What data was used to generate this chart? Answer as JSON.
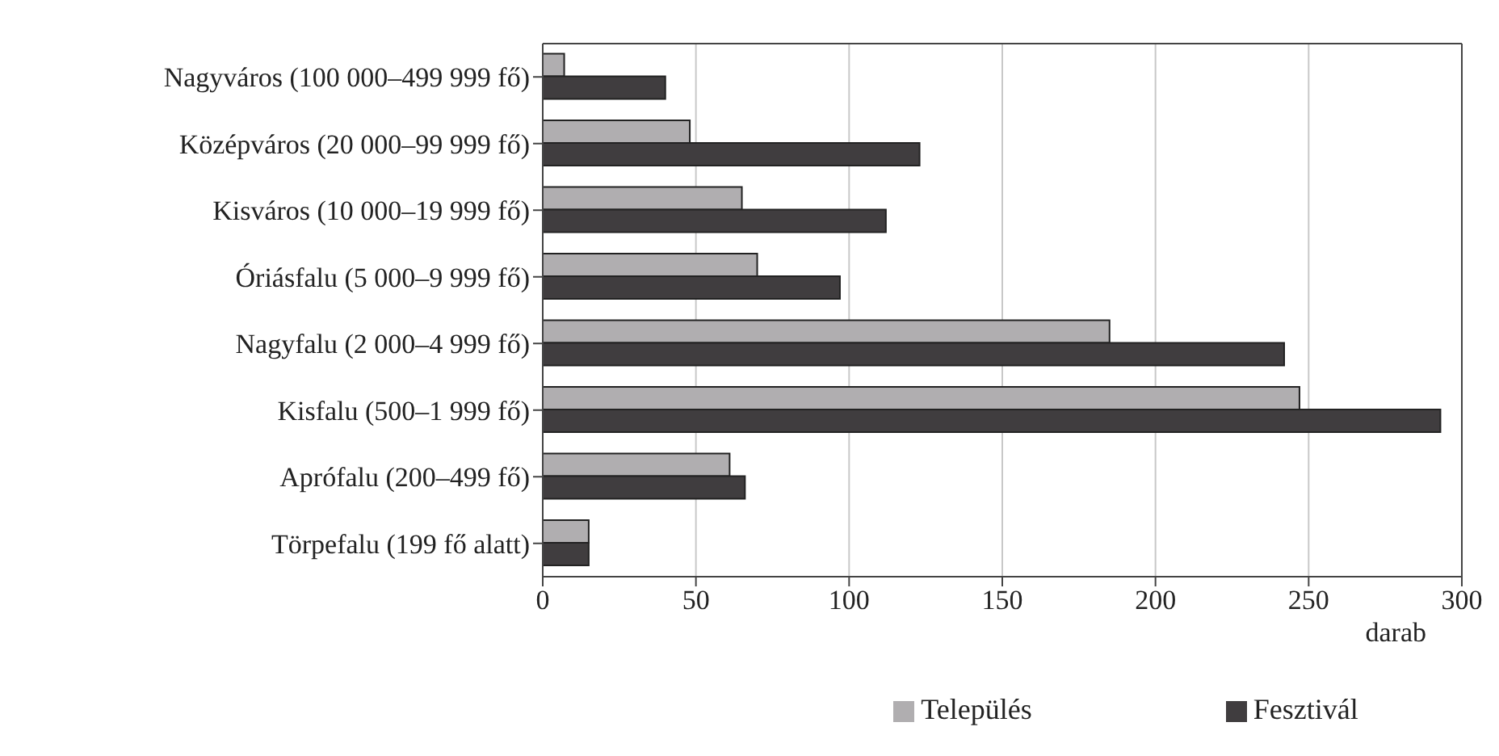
{
  "chart_data": {
    "type": "bar",
    "orientation": "horizontal",
    "xlabel": "darab",
    "categories": [
      "Nagyváros (100 000–499 999 fő)",
      "Középváros (20 000–99 999 fő)",
      "Kisváros (10 000–19 999 fő)",
      "Óriásfalu (5 000–9 999 fő)",
      "Nagyfalu (2 000–4 999 fő)",
      "Kisfalu (500–1 999 fő)",
      "Aprófalu (200–499 fő)",
      "Törpefalu (199 fő alatt)"
    ],
    "series": [
      {
        "name": "Település",
        "color": "#b0aeb0",
        "values": [
          7,
          48,
          65,
          70,
          185,
          247,
          61,
          15
        ]
      },
      {
        "name": "Fesztivál",
        "color": "#403d3f",
        "values": [
          40,
          123,
          112,
          97,
          242,
          293,
          66,
          15
        ]
      }
    ],
    "xlim": [
      0,
      300
    ],
    "xticks": [
      0,
      50,
      100,
      150,
      200,
      250,
      300
    ],
    "grid": "x",
    "legend": "bottom"
  }
}
